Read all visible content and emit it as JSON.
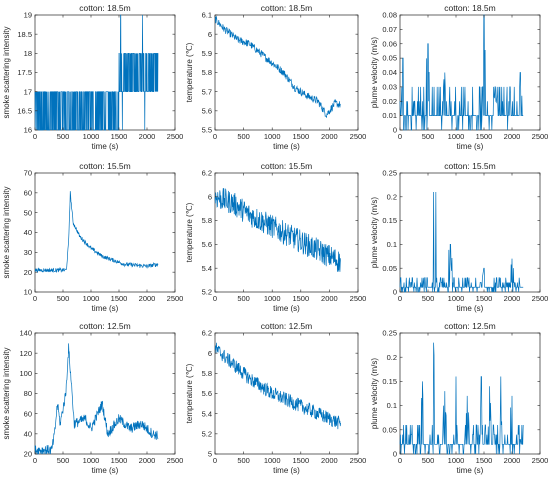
{
  "figure": {
    "width": 550,
    "height": 481,
    "line_color": "#0072BD"
  },
  "chart_data": [
    {
      "type": "line",
      "title": "cotton: 18.5m",
      "xlabel": "time (s)",
      "ylabel": "smoke scattering intensity",
      "xlim": [
        0,
        2500
      ],
      "ylim": [
        16,
        19
      ],
      "xticks": [
        0,
        500,
        1000,
        1500,
        2000,
        2500
      ],
      "yticks": [
        16,
        16.5,
        17,
        17.5,
        18,
        18.5,
        19
      ],
      "ytick_labels": [
        "16",
        "16.5",
        "17",
        "17.5",
        "18",
        "18.5",
        "19"
      ],
      "xtick_labels": [
        "0",
        "500",
        "1000",
        "1500",
        "2000",
        "2500"
      ],
      "series": [
        {
          "pattern": "toggle",
          "t_end": 2200,
          "breakpoints": [
            [
              0,
              16,
              17
            ],
            [
              1500,
              17,
              18
            ]
          ],
          "spikes": [
            [
              1530,
              19
            ],
            [
              1560,
              16
            ],
            [
              1920,
              19
            ],
            [
              1960,
              16
            ]
          ]
        }
      ]
    },
    {
      "type": "line",
      "title": "cotton: 18.5m",
      "xlabel": "time (s)",
      "ylabel": "temperature (℃)",
      "xlim": [
        0,
        2500
      ],
      "ylim": [
        5.5,
        6.1
      ],
      "xticks": [
        0,
        500,
        1000,
        1500,
        2000,
        2500
      ],
      "yticks": [
        5.5,
        5.6,
        5.7,
        5.8,
        5.9,
        6,
        6.1
      ],
      "ytick_labels": [
        "5.5",
        "5.6",
        "5.7",
        "5.8",
        "5.9",
        "6",
        "6.1"
      ],
      "xtick_labels": [
        "0",
        "500",
        "1000",
        "1500",
        "2000",
        "2500"
      ],
      "series": [
        {
          "pattern": "trend",
          "t_end": 2200,
          "knots": [
            [
              0,
              6.08
            ],
            [
              150,
              6.03
            ],
            [
              400,
              5.97
            ],
            [
              600,
              5.95
            ],
            [
              800,
              5.9
            ],
            [
              1000,
              5.85
            ],
            [
              1200,
              5.8
            ],
            [
              1400,
              5.72
            ],
            [
              1600,
              5.68
            ],
            [
              1800,
              5.65
            ],
            [
              1950,
              5.58
            ],
            [
              2100,
              5.64
            ],
            [
              2200,
              5.63
            ]
          ],
          "noise": 0.02
        }
      ]
    },
    {
      "type": "line",
      "title": "cotton: 18.5m",
      "xlabel": "time (s)",
      "ylabel": "plume velocity (m/s)",
      "xlim": [
        0,
        2500
      ],
      "ylim": [
        0,
        0.08
      ],
      "xticks": [
        0,
        500,
        1000,
        1500,
        2000,
        2500
      ],
      "yticks": [
        0,
        0.01,
        0.02,
        0.03,
        0.04,
        0.05,
        0.06,
        0.07,
        0.08
      ],
      "ytick_labels": [
        "0",
        "0.01",
        "0.02",
        "0.03",
        "0.04",
        "0.05",
        "0.06",
        "0.07",
        "0.08"
      ],
      "xtick_labels": [
        "0",
        "500",
        "1000",
        "1500",
        "2000",
        "2500"
      ],
      "series": [
        {
          "pattern": "spiky",
          "t_end": 2200,
          "base": 0.01,
          "levels": [
            0,
            0.01,
            0.02,
            0.03
          ],
          "spikes": [
            [
              50,
              0.05
            ],
            [
              500,
              0.06
            ],
            [
              800,
              0.04
            ],
            [
              1500,
              0.08
            ],
            [
              1700,
              0.03
            ],
            [
              2150,
              0.04
            ]
          ]
        }
      ]
    },
    {
      "type": "line",
      "title": "cotton: 15.5m",
      "xlabel": "time (s)",
      "ylabel": "smoke scattering intensity",
      "xlim": [
        0,
        2500
      ],
      "ylim": [
        10,
        70
      ],
      "xticks": [
        0,
        500,
        1000,
        1500,
        2000,
        2500
      ],
      "yticks": [
        10,
        20,
        30,
        40,
        50,
        60,
        70
      ],
      "ytick_labels": [
        "10",
        "20",
        "30",
        "40",
        "50",
        "60",
        "70"
      ],
      "xtick_labels": [
        "0",
        "500",
        "1000",
        "1500",
        "2000",
        "2500"
      ],
      "series": [
        {
          "pattern": "trend",
          "t_end": 2200,
          "knots": [
            [
              0,
              21
            ],
            [
              560,
              21
            ],
            [
              600,
              35
            ],
            [
              630,
              60
            ],
            [
              680,
              45
            ],
            [
              800,
              38
            ],
            [
              1000,
              32
            ],
            [
              1200,
              28
            ],
            [
              1400,
              26
            ],
            [
              1600,
              24
            ],
            [
              2000,
              23
            ],
            [
              2200,
              24
            ]
          ],
          "noise": 1
        }
      ]
    },
    {
      "type": "line",
      "title": "cotton: 15.5m",
      "xlabel": "time (s)",
      "ylabel": "temperature (℃)",
      "xlim": [
        0,
        2500
      ],
      "ylim": [
        5.2,
        6.2
      ],
      "xticks": [
        0,
        500,
        1000,
        1500,
        2000,
        2500
      ],
      "yticks": [
        5.2,
        5.4,
        5.6,
        5.8,
        6,
        6.2
      ],
      "ytick_labels": [
        "5.2",
        "5.4",
        "5.6",
        "5.8",
        "6",
        "6.2"
      ],
      "xtick_labels": [
        "0",
        "500",
        "1000",
        "1500",
        "2000",
        "2500"
      ],
      "series": [
        {
          "pattern": "trend",
          "t_end": 2200,
          "knots": [
            [
              0,
              6.0
            ],
            [
              300,
              5.95
            ],
            [
              600,
              5.85
            ],
            [
              1000,
              5.75
            ],
            [
              1400,
              5.65
            ],
            [
              1800,
              5.55
            ],
            [
              2200,
              5.45
            ]
          ],
          "noise": 0.1
        }
      ]
    },
    {
      "type": "line",
      "title": "cotton: 15.5m",
      "xlabel": "time (s)",
      "ylabel": "plume velocity (m/s)",
      "xlim": [
        0,
        2500
      ],
      "ylim": [
        0,
        0.25
      ],
      "xticks": [
        0,
        500,
        1000,
        1500,
        2000,
        2500
      ],
      "yticks": [
        0,
        0.05,
        0.1,
        0.15,
        0.2,
        0.25
      ],
      "ytick_labels": [
        "0",
        "0.05",
        "0.1",
        "0.15",
        "0.2",
        "0.25"
      ],
      "xtick_labels": [
        "0",
        "500",
        "1000",
        "1500",
        "2000",
        "2500"
      ],
      "series": [
        {
          "pattern": "spiky",
          "t_end": 2200,
          "base": 0.01,
          "levels": [
            0,
            0.01,
            0.02,
            0.03
          ],
          "spikes": [
            [
              600,
              0.21
            ],
            [
              640,
              0.21
            ],
            [
              900,
              0.1
            ],
            [
              1500,
              0.05
            ],
            [
              2000,
              0.07
            ]
          ]
        }
      ]
    },
    {
      "type": "line",
      "title": "cotton: 12.5m",
      "xlabel": "time (s)",
      "ylabel": "smoke scattering intensity",
      "xlim": [
        0,
        2500
      ],
      "ylim": [
        20,
        140
      ],
      "xticks": [
        0,
        500,
        1000,
        1500,
        2000,
        2500
      ],
      "yticks": [
        20,
        40,
        60,
        80,
        100,
        120,
        140
      ],
      "ytick_labels": [
        "20",
        "40",
        "60",
        "80",
        "100",
        "120",
        "140"
      ],
      "xtick_labels": [
        "0",
        "500",
        "1000",
        "1500",
        "2000",
        "2500"
      ],
      "series": [
        {
          "pattern": "trend",
          "t_end": 2200,
          "knots": [
            [
              0,
              24
            ],
            [
              300,
              24
            ],
            [
              350,
              40
            ],
            [
              400,
              70
            ],
            [
              450,
              50
            ],
            [
              550,
              80
            ],
            [
              600,
              125
            ],
            [
              650,
              90
            ],
            [
              700,
              50
            ],
            [
              900,
              55
            ],
            [
              1000,
              45
            ],
            [
              1200,
              70
            ],
            [
              1300,
              40
            ],
            [
              1500,
              55
            ],
            [
              1700,
              45
            ],
            [
              1900,
              50
            ],
            [
              2100,
              40
            ],
            [
              2200,
              38
            ]
          ],
          "noise": 5
        }
      ]
    },
    {
      "type": "line",
      "title": "cotton: 12.5m",
      "xlabel": "time (s)",
      "ylabel": "temperature (℃)",
      "xlim": [
        0,
        2500
      ],
      "ylim": [
        5,
        6.2
      ],
      "xticks": [
        0,
        500,
        1000,
        1500,
        2000,
        2500
      ],
      "yticks": [
        5,
        5.2,
        5.4,
        5.6,
        5.8,
        6,
        6.2
      ],
      "ytick_labels": [
        "5",
        "5.2",
        "5.4",
        "5.6",
        "5.8",
        "6",
        "6.2"
      ],
      "xtick_labels": [
        "0",
        "500",
        "1000",
        "1500",
        "2000",
        "2500"
      ],
      "series": [
        {
          "pattern": "trend",
          "t_end": 2200,
          "knots": [
            [
              0,
              6.05
            ],
            [
              300,
              5.9
            ],
            [
              600,
              5.75
            ],
            [
              1000,
              5.6
            ],
            [
              1400,
              5.5
            ],
            [
              1800,
              5.4
            ],
            [
              2200,
              5.3
            ]
          ],
          "noise": 0.07
        }
      ]
    },
    {
      "type": "line",
      "title": "cotton: 12.5m",
      "xlabel": "time (s)",
      "ylabel": "plume velocity (m/s)",
      "xlim": [
        0,
        2500
      ],
      "ylim": [
        0,
        0.25
      ],
      "xticks": [
        0,
        500,
        1000,
        1500,
        2000,
        2500
      ],
      "yticks": [
        0,
        0.05,
        0.1,
        0.15,
        0.2,
        0.25
      ],
      "ytick_labels": [
        "0",
        "0.05",
        "0.1",
        "0.15",
        "0.2",
        "0.25"
      ],
      "xtick_labels": [
        "0",
        "500",
        "1000",
        "1500",
        "2000",
        "2500"
      ],
      "series": [
        {
          "pattern": "spiky",
          "t_end": 2200,
          "base": 0.02,
          "levels": [
            0,
            0.02,
            0.04,
            0.06
          ],
          "spikes": [
            [
              400,
              0.15
            ],
            [
              600,
              0.23
            ],
            [
              800,
              0.13
            ],
            [
              1000,
              0.16
            ],
            [
              1200,
              0.12
            ],
            [
              1450,
              0.16
            ],
            [
              1600,
              0.14
            ],
            [
              1800,
              0.16
            ],
            [
              2000,
              0.12
            ],
            [
              2150,
              0.03
            ]
          ]
        }
      ]
    }
  ]
}
